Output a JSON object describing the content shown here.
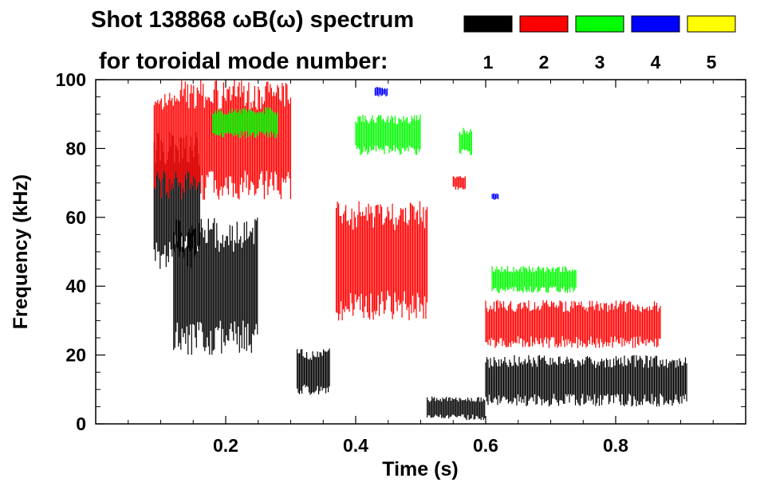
{
  "chart_data": {
    "type": "heatmap",
    "title_line1": "Shot 138868 ωB(ω) spectrum",
    "title_line2": "for toroidal mode number:",
    "xlabel": "Time (s)",
    "ylabel": "Frequency (kHz)",
    "xlim": [
      0.0,
      1.0
    ],
    "ylim": [
      0,
      100
    ],
    "x_ticks": [
      0.2,
      0.4,
      0.6,
      0.8
    ],
    "x_tick_labels": [
      "0.2",
      "0.4",
      "0.6",
      "0.8"
    ],
    "y_ticks": [
      0,
      20,
      40,
      60,
      80,
      100
    ],
    "y_tick_labels": [
      "0",
      "20",
      "40",
      "60",
      "80",
      "100"
    ],
    "grid": false,
    "legend": {
      "placement": "top-right",
      "entries": [
        {
          "label": "1",
          "color": "#000000"
        },
        {
          "label": "2",
          "color": "#ff0000"
        },
        {
          "label": "3",
          "color": "#00ff00"
        },
        {
          "label": "4",
          "color": "#0000ff"
        },
        {
          "label": "5",
          "color": "#ffff00"
        }
      ]
    },
    "series": [
      {
        "n": 1,
        "color": "#000000",
        "regions": [
          {
            "t": [
              0.09,
              0.16
            ],
            "f": [
              45,
              85
            ]
          },
          {
            "t": [
              0.12,
              0.25
            ],
            "f": [
              20,
              60
            ]
          },
          {
            "t": [
              0.31,
              0.36
            ],
            "f": [
              8,
              22
            ]
          },
          {
            "t": [
              0.51,
              0.6
            ],
            "f": [
              1,
              8
            ]
          },
          {
            "t": [
              0.6,
              0.91
            ],
            "f": [
              5,
              20
            ]
          }
        ]
      },
      {
        "n": 2,
        "color": "#ff0000",
        "regions": [
          {
            "t": [
              0.09,
              0.3
            ],
            "f": [
              65,
              100
            ]
          },
          {
            "t": [
              0.37,
              0.51
            ],
            "f": [
              30,
              65
            ]
          },
          {
            "t": [
              0.6,
              0.87
            ],
            "f": [
              22,
              36
            ]
          },
          {
            "t": [
              0.55,
              0.57
            ],
            "f": [
              68,
              72
            ]
          }
        ]
      },
      {
        "n": 3,
        "color": "#00ff00",
        "regions": [
          {
            "t": [
              0.18,
              0.28
            ],
            "f": [
              83,
              92
            ]
          },
          {
            "t": [
              0.4,
              0.5
            ],
            "f": [
              78,
              90
            ]
          },
          {
            "t": [
              0.56,
              0.58
            ],
            "f": [
              78,
              86
            ]
          },
          {
            "t": [
              0.61,
              0.74
            ],
            "f": [
              38,
              46
            ]
          }
        ]
      },
      {
        "n": 4,
        "color": "#0000ff",
        "regions": [
          {
            "t": [
              0.43,
              0.45
            ],
            "f": [
              95,
              98
            ]
          },
          {
            "t": [
              0.61,
              0.62
            ],
            "f": [
              65,
              67
            ]
          }
        ]
      },
      {
        "n": 5,
        "color": "#ffff00",
        "regions": []
      }
    ]
  }
}
